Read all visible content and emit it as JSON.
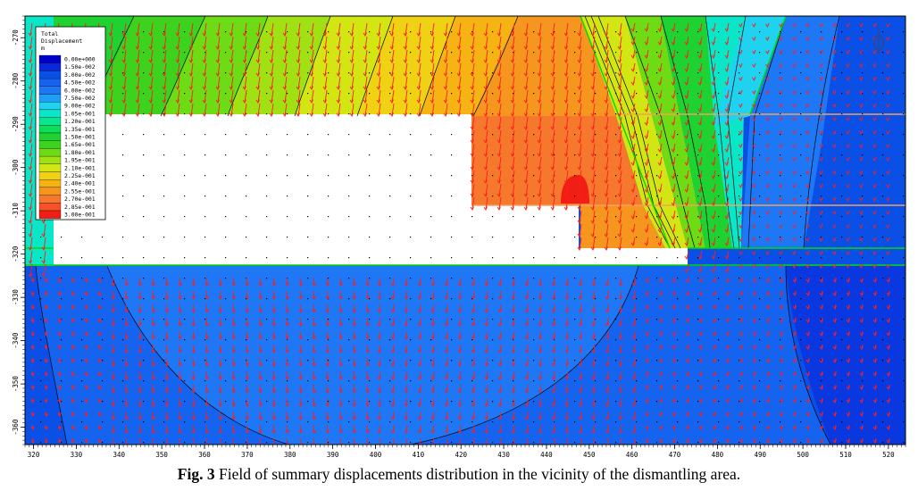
{
  "chart_data": {
    "type": "heatmap",
    "legend": {
      "title_lines": [
        "Total",
        "Displacement",
        "m"
      ],
      "levels": [
        "0.00e+000",
        "1.50e-002",
        "3.00e-002",
        "4.50e-002",
        "6.00e-002",
        "7.50e-002",
        "9.00e-002",
        "1.05e-001",
        "1.20e-001",
        "1.35e-001",
        "1.50e-001",
        "1.65e-001",
        "1.80e-001",
        "1.95e-001",
        "2.10e-001",
        "2.25e-001",
        "2.40e-001",
        "2.55e-001",
        "2.70e-001",
        "2.85e-001",
        "3.00e-001"
      ],
      "colors": [
        "#0000c8",
        "#0a28dc",
        "#0a50e6",
        "#1464f0",
        "#1e78f5",
        "#1e9ef5",
        "#1ed2f0",
        "#0ae6c8",
        "#0ae690",
        "#0ade5a",
        "#1ed232",
        "#3cd21e",
        "#6edc14",
        "#a0e114",
        "#d2e614",
        "#f0d214",
        "#f5b414",
        "#f5961e",
        "#f5782d",
        "#f55028",
        "#f01e14"
      ],
      "placement": "top-left"
    },
    "x_ticks": [
      320,
      330,
      340,
      350,
      360,
      370,
      380,
      390,
      400,
      410,
      420,
      430,
      440,
      450,
      460,
      470,
      480,
      490,
      500,
      510,
      520
    ],
    "y_ticks": [
      -270,
      -280,
      -290,
      -300,
      -310,
      -320,
      -330,
      -340,
      -350,
      -360
    ],
    "xlim": [
      318,
      524
    ],
    "ylim": [
      -364,
      -265
    ],
    "grid": false
  },
  "caption": {
    "label": "Fig. 3",
    "text": " Field of summary displacements distribution in the vicinity of the dismantling area."
  }
}
